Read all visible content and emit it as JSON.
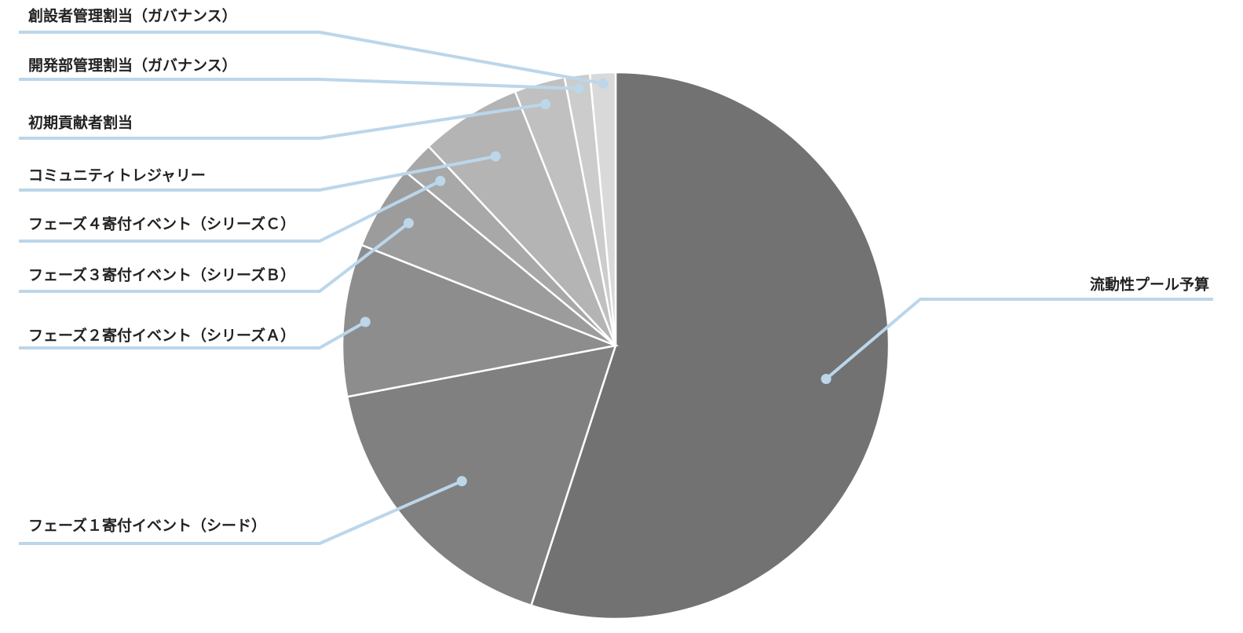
{
  "chart_data": {
    "type": "pie",
    "start_angle_deg": 0,
    "direction": "clockwise",
    "slices": [
      {
        "label": "流動性プール予算",
        "value": 55,
        "color": "#727272"
      },
      {
        "label": "フェーズ１寄付イベント（シード）",
        "value": 17,
        "color": "#808080"
      },
      {
        "label": "フェーズ２寄付イベント（シリーズＡ）",
        "value": 9,
        "color": "#8d8d8d"
      },
      {
        "label": "フェーズ３寄付イベント（シリーズＢ）",
        "value": 5,
        "color": "#9c9c9c"
      },
      {
        "label": "フェーズ４寄付イベント（シリーズＣ）",
        "value": 2,
        "color": "#a8a8a8"
      },
      {
        "label": "コミュニティトレジャリー",
        "value": 6,
        "color": "#b4b4b4"
      },
      {
        "label": "初期貢献者割当",
        "value": 3,
        "color": "#c0c0c0"
      },
      {
        "label": "開発部管理割当（ガバナンス）",
        "value": 1.5,
        "color": "#cccccc"
      },
      {
        "label": "創設者管理割当（ガバナンス）",
        "value": 1.5,
        "color": "#d9d9d9"
      }
    ],
    "legend": "none",
    "leader_line_color": "#bcd6ea"
  }
}
